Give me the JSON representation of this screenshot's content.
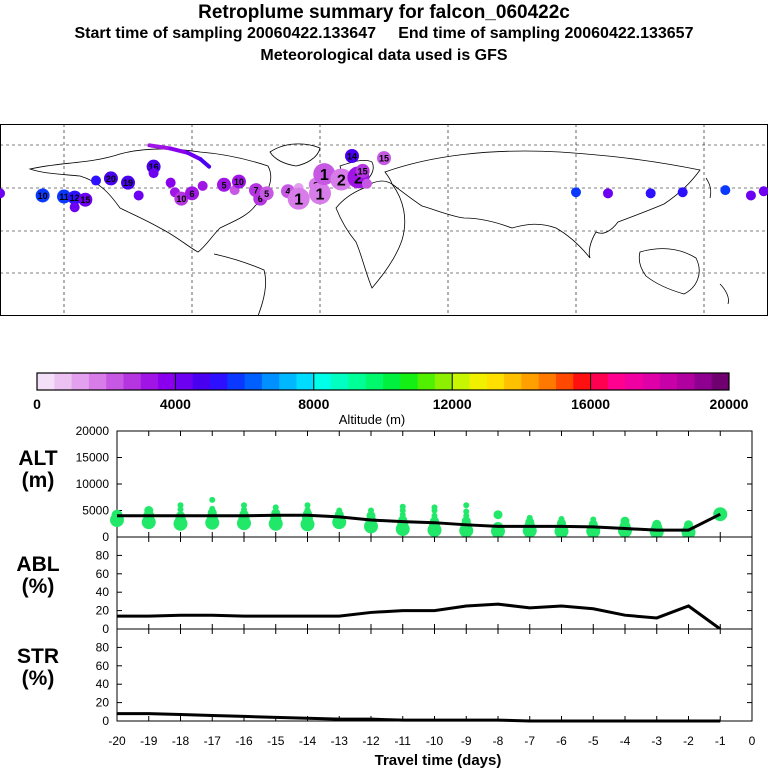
{
  "header": {
    "title": "Retroplume summary for falcon_060422c",
    "subtitle": "Start time of sampling 20060422.133647     End time of sampling 20060422.133657",
    "met": "Meteorological data used is GFS"
  },
  "map": {
    "clusters": [
      {
        "lon": -180,
        "lat": 25,
        "label": "",
        "alt": 4200
      },
      {
        "lon": -160,
        "lat": 23,
        "label": "10",
        "alt": 5600
      },
      {
        "lon": -150,
        "lat": 22,
        "label": "11",
        "alt": 5500
      },
      {
        "lon": -145,
        "lat": 21,
        "label": "12",
        "alt": 5200
      },
      {
        "lon": -140,
        "lat": 19,
        "label": "15",
        "alt": 4400
      },
      {
        "lon": -145,
        "lat": 12,
        "label": "",
        "alt": 4400
      },
      {
        "lon": -135,
        "lat": 37,
        "label": "",
        "alt": 5000
      },
      {
        "lon": -128,
        "lat": 39,
        "label": "20",
        "alt": 4600
      },
      {
        "lon": -120,
        "lat": 35,
        "label": "19",
        "alt": 4500
      },
      {
        "lon": -115,
        "lat": 23,
        "label": "",
        "alt": 4200
      },
      {
        "lon": -108,
        "lat": 50,
        "label": "16",
        "alt": 4800
      },
      {
        "lon": -108,
        "lat": 44,
        "label": "",
        "alt": 4200
      },
      {
        "lon": -100,
        "lat": 35,
        "label": "",
        "alt": 3600
      },
      {
        "lon": -98,
        "lat": 26,
        "label": "",
        "alt": 3000
      },
      {
        "lon": -95,
        "lat": 20,
        "label": "10",
        "alt": 2800
      },
      {
        "lon": -90,
        "lat": 25,
        "label": "6",
        "alt": 3200
      },
      {
        "lon": -85,
        "lat": 32,
        "label": "",
        "alt": 3400
      },
      {
        "lon": -75,
        "lat": 33,
        "label": "5",
        "alt": 3300
      },
      {
        "lon": -70,
        "lat": 28,
        "label": "",
        "alt": 2400
      },
      {
        "lon": -68,
        "lat": 36,
        "label": "10",
        "alt": 3100
      },
      {
        "lon": -60,
        "lat": 28,
        "label": "7",
        "alt": 2900
      },
      {
        "lon": -58,
        "lat": 20,
        "label": "6",
        "alt": 2500
      },
      {
        "lon": -55,
        "lat": 25,
        "label": "5",
        "alt": 2200
      },
      {
        "lon": -45,
        "lat": 27,
        "label": "4",
        "alt": 2000
      },
      {
        "lon": -40,
        "lat": 30,
        "label": "",
        "alt": 1400
      },
      {
        "lon": -40,
        "lat": 20,
        "label": "1",
        "alt": 1600
      },
      {
        "lon": -32,
        "lat": 33,
        "label": "3",
        "alt": 1700
      },
      {
        "lon": -30,
        "lat": 25,
        "label": "1",
        "alt": 1500
      },
      {
        "lon": -28,
        "lat": 43,
        "label": "1",
        "alt": 2200
      },
      {
        "lon": -20,
        "lat": 38,
        "label": "2",
        "alt": 1800
      },
      {
        "lon": -12,
        "lat": 40,
        "label": "2",
        "alt": 3200
      },
      {
        "lon": -10,
        "lat": 46,
        "label": "15",
        "alt": 2600
      },
      {
        "lon": -8,
        "lat": 34,
        "label": "",
        "alt": 2300
      },
      {
        "lon": -15,
        "lat": 60,
        "label": "14",
        "alt": 4700
      },
      {
        "lon": 0,
        "lat": 58,
        "label": "15",
        "alt": 2400
      },
      {
        "lon": 90,
        "lat": 26,
        "label": "",
        "alt": 5800
      },
      {
        "lon": 105,
        "lat": 25,
        "label": "",
        "alt": 4400
      },
      {
        "lon": 125,
        "lat": 25,
        "label": "",
        "alt": 5300
      },
      {
        "lon": 140,
        "lat": 26,
        "label": "",
        "alt": 5000
      },
      {
        "lon": 160,
        "lat": 28,
        "label": "",
        "alt": 5700
      },
      {
        "lon": 172,
        "lat": 23,
        "label": "",
        "alt": 4300
      },
      {
        "lon": 178,
        "lat": 27,
        "label": "",
        "alt": 4100
      }
    ],
    "path": [
      {
        "lon": -110,
        "lat": 70,
        "alt": 2500
      },
      {
        "lon": -100,
        "lat": 67,
        "alt": 3200
      },
      {
        "lon": -92,
        "lat": 63,
        "alt": 3800
      },
      {
        "lon": -86,
        "lat": 57,
        "alt": 4200
      },
      {
        "lon": -82,
        "lat": 50,
        "alt": 4500
      }
    ]
  },
  "scale": {
    "ticks": [
      "0",
      "4000",
      "8000",
      "12000",
      "16000",
      "20000"
    ],
    "label": "Altitude (m)",
    "colors": [
      "#f3e0f8",
      "#ecc2f2",
      "#e3a0ee",
      "#d77ce8",
      "#c658e4",
      "#b535e0",
      "#a014e6",
      "#8a00ee",
      "#6e00f2",
      "#4a00f0",
      "#2d10ff",
      "#0b38ff",
      "#0060ff",
      "#0090ff",
      "#00b8ff",
      "#00dcff",
      "#00ffe8",
      "#00ffc0",
      "#00ff96",
      "#00f86c",
      "#00f040",
      "#14f014",
      "#50f000",
      "#8cf000",
      "#c8f500",
      "#f0f000",
      "#ffe000",
      "#ffc000",
      "#ffa000",
      "#ff7800",
      "#ff4800",
      "#ff1010",
      "#ff0050",
      "#ff0090",
      "#f000a0",
      "#e000a8",
      "#c800a8",
      "#b000a0",
      "#900090",
      "#700070"
    ]
  },
  "chart_data": [
    {
      "type": "scatter",
      "ylabel": "ALT\n(m)",
      "ylim": [
        0,
        20000
      ],
      "yticks": [
        "0",
        "5000",
        "10000",
        "15000",
        "20000"
      ],
      "xlabel": "Travel time (days)",
      "xticks": [
        "-20",
        "-19",
        "-18",
        "-17",
        "-16",
        "-15",
        "-14",
        "-13",
        "-12",
        "-11",
        "-10",
        "-9",
        "-8",
        "-7",
        "-6",
        "-5",
        "-4",
        "-3",
        "-2",
        "-1",
        "0"
      ],
      "line": {
        "x": [
          -20,
          -19,
          -18,
          -17,
          -16,
          -15,
          -14,
          -13,
          -12,
          -11,
          -10,
          -9,
          -8,
          -7,
          -6,
          -5,
          -4,
          -3,
          -2,
          -1
        ],
        "y": [
          4000,
          4000,
          4000,
          4000,
          4000,
          4100,
          4100,
          3800,
          3200,
          2900,
          2700,
          2300,
          2000,
          2000,
          2000,
          1900,
          1600,
          1300,
          1300,
          4300
        ]
      },
      "points": [
        {
          "x": -20,
          "y": [
            3200,
            4100
          ]
        },
        {
          "x": -19,
          "y": [
            2800,
            4000,
            5000
          ]
        },
        {
          "x": -18,
          "y": [
            2500,
            3200,
            4000,
            5200,
            6000
          ]
        },
        {
          "x": -17,
          "y": [
            2700,
            3800,
            4600,
            5300,
            7000
          ]
        },
        {
          "x": -16,
          "y": [
            2600,
            3500,
            4300,
            5200,
            6000
          ]
        },
        {
          "x": -15,
          "y": [
            2500,
            3600,
            4500,
            5600
          ]
        },
        {
          "x": -14,
          "y": [
            2400,
            3600,
            4400,
            5100,
            6000
          ]
        },
        {
          "x": -13,
          "y": [
            2800,
            3500,
            4200,
            5000
          ]
        },
        {
          "x": -12,
          "y": [
            2000,
            3000,
            4000,
            5000
          ]
        },
        {
          "x": -11,
          "y": [
            1500,
            2400,
            3200,
            4200,
            5000,
            5700
          ]
        },
        {
          "x": -10,
          "y": [
            1300,
            2200,
            3000,
            4000,
            5000,
            5600
          ]
        },
        {
          "x": -9,
          "y": [
            1200,
            2200,
            3000,
            4000,
            4800,
            6000
          ]
        },
        {
          "x": -8,
          "y": [
            1100,
            1800,
            4200
          ]
        },
        {
          "x": -7,
          "y": [
            1200,
            2000,
            2800,
            3600
          ]
        },
        {
          "x": -6,
          "y": [
            1100,
            1800,
            2600,
            3400
          ]
        },
        {
          "x": -5,
          "y": [
            1100,
            1600,
            2400,
            3300
          ]
        },
        {
          "x": -4,
          "y": [
            1200,
            2000,
            3000
          ]
        },
        {
          "x": -3,
          "y": [
            1000,
            1800,
            2400
          ]
        },
        {
          "x": -2,
          "y": [
            900,
            1500,
            2300
          ]
        },
        {
          "x": -1,
          "y": [
            4300
          ]
        }
      ]
    },
    {
      "type": "line",
      "ylabel": "ABL\n(%)",
      "ylim": [
        0,
        100
      ],
      "yticks": [
        "0",
        "20",
        "40",
        "60",
        "80"
      ],
      "x": [
        -20,
        -19,
        -18,
        -17,
        -16,
        -15,
        -14,
        -13,
        -12,
        -11,
        -10,
        -9,
        -8,
        -7,
        -6,
        -5,
        -4,
        -3,
        -2,
        -1
      ],
      "y": [
        14,
        14,
        15,
        15,
        14,
        14,
        14,
        14,
        18,
        20,
        20,
        25,
        27,
        23,
        25,
        22,
        15,
        12,
        25,
        0
      ]
    },
    {
      "type": "line",
      "ylabel": "STR\n(%)",
      "ylim": [
        0,
        100
      ],
      "yticks": [
        "0",
        "20",
        "40",
        "60",
        "80"
      ],
      "x": [
        -20,
        -19,
        -18,
        -17,
        -16,
        -15,
        -14,
        -13,
        -12,
        -11,
        -10,
        -9,
        -8,
        -7,
        -6,
        -5,
        -4,
        -3,
        -2,
        -1
      ],
      "y": [
        8,
        8,
        7,
        6,
        5,
        4,
        3,
        2,
        2,
        1,
        1,
        1,
        1,
        0,
        0,
        0,
        0,
        0,
        0,
        0
      ]
    }
  ]
}
